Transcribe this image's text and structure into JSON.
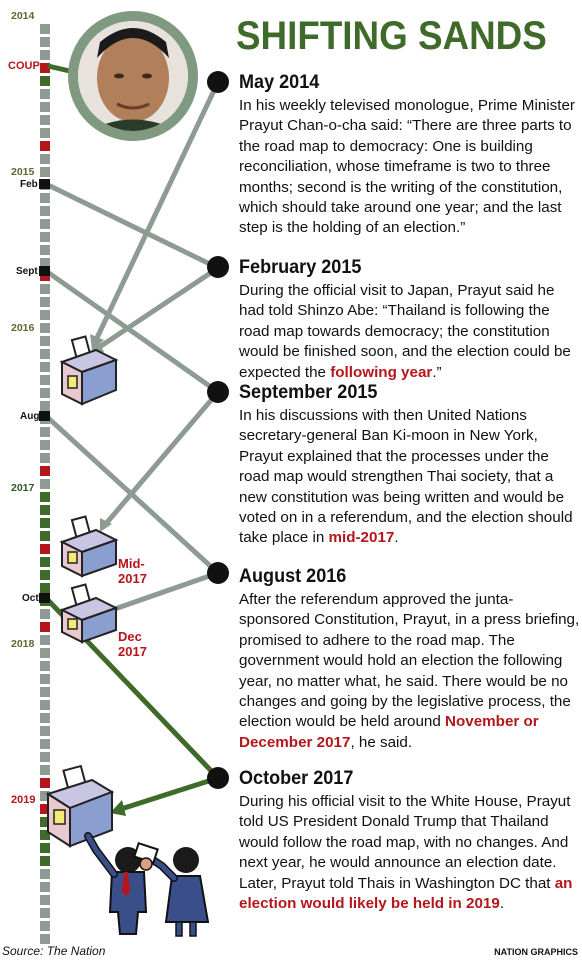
{
  "title": "SHIFTING SANDS",
  "timeline": {
    "coup_label": "COUP",
    "years": [
      "2014",
      "2015",
      "2016",
      "2017",
      "2018",
      "2019"
    ],
    "months": [
      "Feb",
      "Sept",
      "Aug",
      "Oct"
    ]
  },
  "ballot_labels": [
    "Mid-2017",
    "Dec 2017"
  ],
  "entries": [
    {
      "date": "May 2014",
      "text": "In his weekly televised monologue, Prime Minister Prayut Chan-o-cha said: “There are three parts to the road map to democracy: One is building reconciliation, whose timeframe is two to three months; second is the writing of the constitution, which should take around one year; and the last step is the holding of an election.”"
    },
    {
      "date": "February 2015",
      "text_before": "During the official visit to Japan, Prayut said he had told Shinzo Abe: “Thailand is following the road map towards democracy; the constitution would be finished soon, and the election could be expected the ",
      "highlight": "following year",
      "text_after": ".”"
    },
    {
      "date": "September 2015",
      "text_before": "In his discussions with then United Nations secretary-general Ban Ki-moon in New York, Prayut explained that the processes under the road map would strengthen Thai society, that a new constitution was being written and would be voted on in a referendum, and the election should take place in ",
      "highlight": "mid-2017",
      "text_after": "."
    },
    {
      "date": "August 2016",
      "text_before": "After the referendum approved the junta-sponsored Constitution, Prayut, in a press briefing, promised to adhere to the road map. The government would hold an election the following year, no matter what, he said. There would be no changes and going by the legislative process, the election would be held around ",
      "highlight": "November or December 2017",
      "text_after": ", he said."
    },
    {
      "date": "October 2017",
      "text_before": "During his official visit to the White House, Prayut told US President Donald Trump that Thailand would follow the road map, with no changes. And next year, he would announce an election date. Later, Prayut told Thais in Washington DC that ",
      "highlight": "an election would likely be held in 2019",
      "text_after": "."
    }
  ],
  "source": "Source: The Nation",
  "credit": "NATION GRAPHICS",
  "colors": {
    "green": "#3f6b2a",
    "red": "#b5161b",
    "gray": "#8d9b93"
  }
}
